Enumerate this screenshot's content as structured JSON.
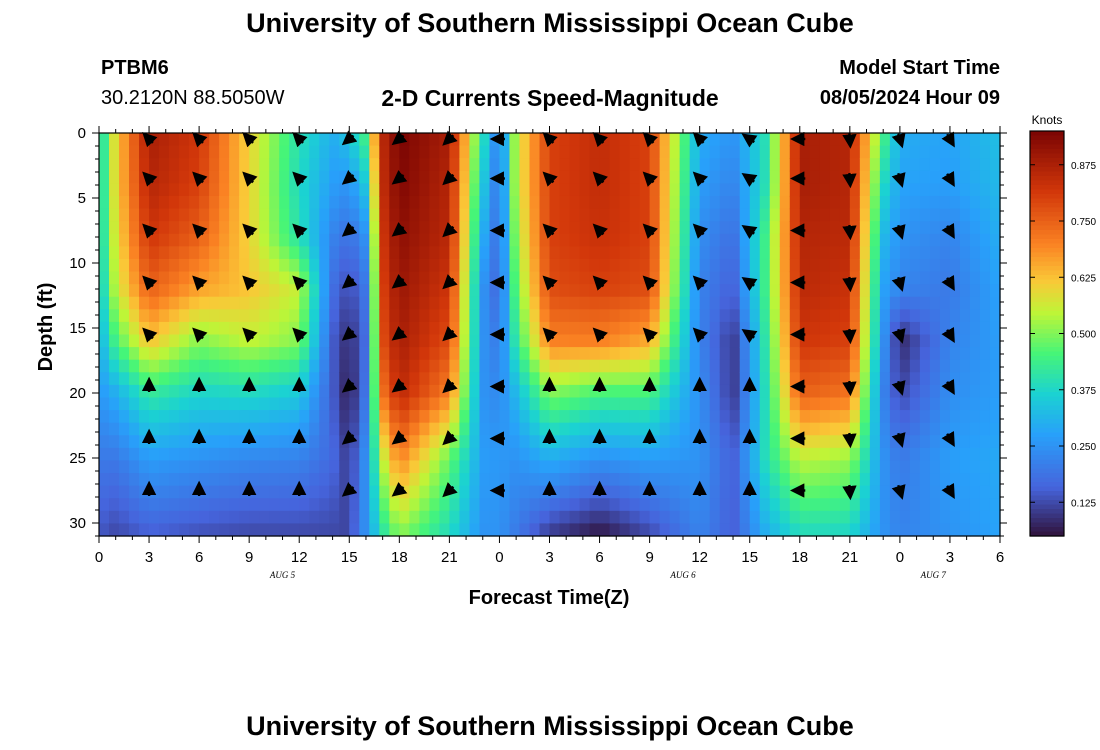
{
  "header": {
    "title": "University of Southern Mississippi Ocean Cube",
    "station": "PTBM6",
    "coords": "30.2120N  88.5050W",
    "subtitle": "2-D Currents Speed-Magnitude",
    "start_label": "Model Start Time",
    "start_value": "08/05/2024 Hour 09"
  },
  "footer": {
    "title": "University of Southern Mississippi Ocean Cube"
  },
  "chart_data": {
    "type": "heatmap",
    "title": "2-D Currents Speed-Magnitude",
    "xlabel": "Forecast Time(Z)",
    "ylabel": "Depth (ft)",
    "x_range_hours": [
      0,
      54
    ],
    "ylim": [
      0,
      31
    ],
    "x_tick_labels": [
      "0",
      "3",
      "6",
      "9",
      "12",
      "15",
      "18",
      "21",
      "0",
      "3",
      "6",
      "9",
      "12",
      "15",
      "18",
      "21",
      "0",
      "3",
      "6"
    ],
    "y_ticks": [
      0,
      5,
      10,
      15,
      20,
      25,
      30
    ],
    "day_labels": [
      {
        "hour": 11,
        "text": "AUG 5"
      },
      {
        "hour": 35,
        "text": "AUG 6"
      },
      {
        "hour": 50,
        "text": "AUG 7"
      }
    ],
    "colorbar": {
      "label": "Knots",
      "min": 0.05,
      "max": 0.95,
      "ticks": [
        "0.875",
        "0.750",
        "0.625",
        "0.500",
        "0.375",
        "0.250",
        "0.125"
      ],
      "tick_values": [
        0.875,
        0.75,
        0.625,
        0.5,
        0.375,
        0.25,
        0.125
      ]
    },
    "arrow_hours": [
      3,
      6,
      9,
      12,
      15,
      18,
      21,
      24,
      27,
      30,
      33,
      36,
      39,
      42,
      45,
      48,
      51
    ],
    "arrow_depths": [
      0,
      3.5,
      7.5,
      11.5,
      15.5,
      19.5,
      23.5,
      27.5
    ],
    "direction_by_time": [
      [
        3,
        315
      ],
      [
        12,
        315
      ],
      [
        15,
        230
      ],
      [
        16,
        235
      ],
      [
        22,
        225
      ],
      [
        24,
        270
      ],
      [
        27,
        315
      ],
      [
        38,
        315
      ],
      [
        42,
        270
      ],
      [
        44,
        180
      ],
      [
        51,
        150
      ]
    ],
    "speed_profiles": [
      {
        "hour": 0,
        "values": [
          0.35,
          0.35,
          0.35,
          0.33,
          0.3,
          0.26,
          0.2,
          0.14
        ]
      },
      {
        "hour": 1,
        "values": [
          0.6,
          0.6,
          0.58,
          0.55,
          0.45,
          0.3,
          0.2,
          0.12
        ]
      },
      {
        "hour": 3,
        "values": [
          0.88,
          0.86,
          0.82,
          0.75,
          0.62,
          0.42,
          0.27,
          0.15
        ]
      },
      {
        "hour": 6,
        "values": [
          0.82,
          0.8,
          0.75,
          0.66,
          0.5,
          0.37,
          0.25,
          0.13
        ]
      },
      {
        "hour": 9,
        "values": [
          0.6,
          0.6,
          0.6,
          0.62,
          0.55,
          0.38,
          0.23,
          0.12
        ]
      },
      {
        "hour": 12,
        "values": [
          0.4,
          0.38,
          0.4,
          0.55,
          0.5,
          0.35,
          0.22,
          0.12
        ]
      },
      {
        "hour": 14,
        "values": [
          0.3,
          0.27,
          0.22,
          0.18,
          0.15,
          0.15,
          0.17,
          0.12
        ]
      },
      {
        "hour": 15,
        "values": [
          0.35,
          0.25,
          0.18,
          0.12,
          0.08,
          0.06,
          0.1,
          0.12
        ]
      },
      {
        "hour": 16,
        "values": [
          0.45,
          0.35,
          0.25,
          0.2,
          0.18,
          0.2,
          0.25,
          0.25
        ]
      },
      {
        "hour": 17,
        "values": [
          0.85,
          0.84,
          0.82,
          0.8,
          0.78,
          0.72,
          0.55,
          0.4
        ]
      },
      {
        "hour": 18,
        "values": [
          0.95,
          0.94,
          0.92,
          0.9,
          0.88,
          0.85,
          0.7,
          0.5
        ]
      },
      {
        "hour": 21,
        "values": [
          0.88,
          0.86,
          0.85,
          0.82,
          0.78,
          0.7,
          0.48,
          0.38
        ]
      },
      {
        "hour": 23,
        "values": [
          0.4,
          0.35,
          0.3,
          0.25,
          0.25,
          0.25,
          0.27,
          0.25
        ]
      },
      {
        "hour": 24,
        "values": [
          0.2,
          0.18,
          0.17,
          0.16,
          0.2,
          0.23,
          0.26,
          0.25
        ]
      },
      {
        "hour": 25,
        "values": [
          0.55,
          0.55,
          0.52,
          0.48,
          0.42,
          0.32,
          0.25,
          0.2
        ]
      },
      {
        "hour": 27,
        "values": [
          0.8,
          0.8,
          0.8,
          0.78,
          0.7,
          0.5,
          0.3,
          0.1
        ]
      },
      {
        "hour": 30,
        "values": [
          0.84,
          0.84,
          0.83,
          0.8,
          0.7,
          0.45,
          0.25,
          0.05
        ]
      },
      {
        "hour": 33,
        "values": [
          0.8,
          0.8,
          0.8,
          0.78,
          0.65,
          0.45,
          0.27,
          0.12
        ]
      },
      {
        "hour": 36,
        "values": [
          0.3,
          0.27,
          0.24,
          0.22,
          0.22,
          0.24,
          0.25,
          0.22
        ]
      },
      {
        "hour": 38,
        "values": [
          0.25,
          0.22,
          0.18,
          0.15,
          0.1,
          0.1,
          0.15,
          0.15
        ]
      },
      {
        "hour": 40,
        "values": [
          0.4,
          0.4,
          0.45,
          0.45,
          0.42,
          0.4,
          0.4,
          0.3
        ]
      },
      {
        "hour": 42,
        "values": [
          0.88,
          0.88,
          0.86,
          0.85,
          0.82,
          0.75,
          0.55,
          0.38
        ]
      },
      {
        "hour": 45,
        "values": [
          0.86,
          0.86,
          0.85,
          0.83,
          0.8,
          0.72,
          0.52,
          0.37
        ]
      },
      {
        "hour": 47,
        "values": [
          0.45,
          0.38,
          0.32,
          0.28,
          0.25,
          0.22,
          0.25,
          0.25
        ]
      },
      {
        "hour": 48,
        "values": [
          0.3,
          0.28,
          0.25,
          0.22,
          0.08,
          0.12,
          0.2,
          0.22
        ]
      },
      {
        "hour": 51,
        "values": [
          0.28,
          0.27,
          0.22,
          0.2,
          0.22,
          0.24,
          0.27,
          0.25
        ]
      },
      {
        "hour": 54,
        "values": [
          0.33,
          0.32,
          0.3,
          0.28,
          0.27,
          0.27,
          0.29,
          0.28
        ]
      }
    ],
    "profile_depths": [
      0,
      4,
      8,
      12,
      16,
      20,
      25,
      31
    ]
  }
}
